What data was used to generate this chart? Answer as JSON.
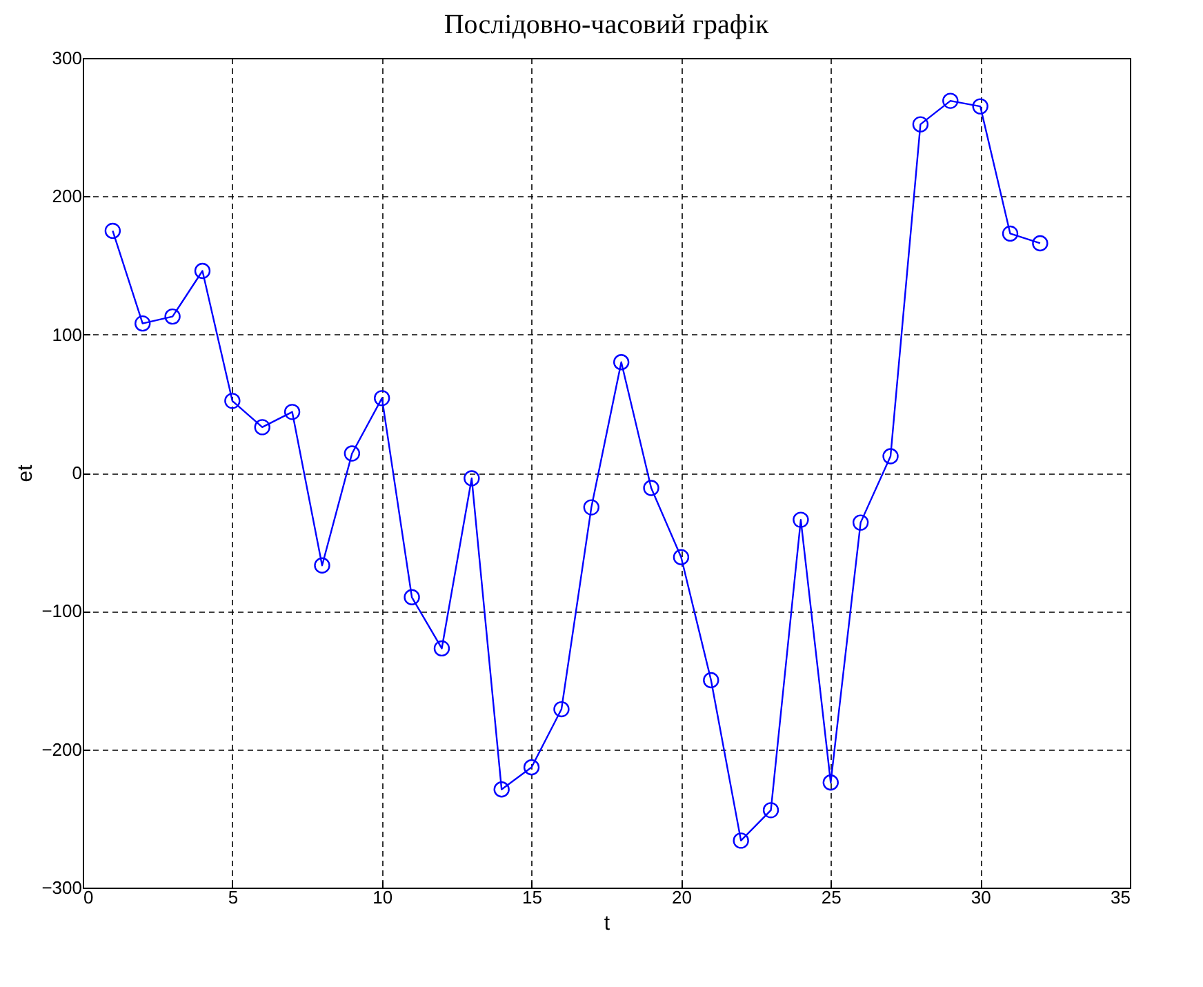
{
  "chart_data": {
    "type": "line",
    "title": "Послідовно-часовий графік",
    "xlabel": "t",
    "ylabel": "et",
    "x": [
      1,
      2,
      3,
      4,
      5,
      6,
      7,
      8,
      9,
      10,
      11,
      12,
      13,
      14,
      15,
      16,
      17,
      18,
      19,
      20,
      21,
      22,
      23,
      24,
      25,
      26,
      27,
      28,
      29,
      30,
      31,
      32
    ],
    "series": [
      {
        "color": "#0000ff",
        "values": [
          175,
          108,
          113,
          146,
          52,
          33,
          44,
          -67,
          14,
          54,
          -90,
          -127,
          -4,
          -229,
          -213,
          -171,
          -25,
          80,
          -11,
          -61,
          -150,
          -266,
          -244,
          -34,
          -224,
          -36,
          12,
          252,
          269,
          265,
          173,
          166
        ]
      }
    ],
    "xlim": [
      0,
      35
    ],
    "xticks": [
      0,
      5,
      10,
      15,
      20,
      25,
      30,
      35
    ],
    "ylim": [
      -300,
      300
    ],
    "yticks": [
      -300,
      -200,
      -100,
      0,
      100,
      200,
      300
    ],
    "grid": true,
    "marker": "circle",
    "line_style": "solid"
  }
}
